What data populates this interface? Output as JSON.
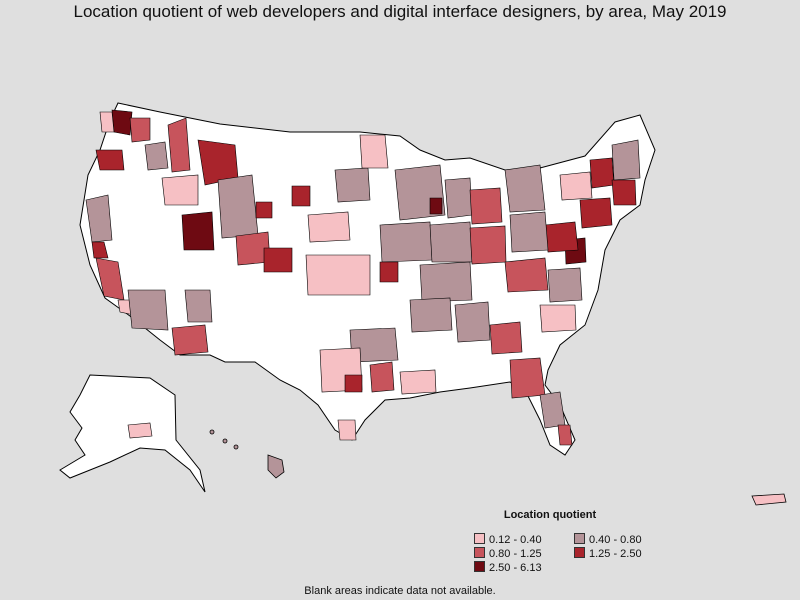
{
  "title": "Location quotient of web developers and digital interface designers, by area, May 2019",
  "legend": {
    "title": "Location quotient",
    "items": [
      {
        "label": "0.12 - 0.40",
        "color": "#f6c0c4"
      },
      {
        "label": "0.40 - 0.80",
        "color": "#b49499"
      },
      {
        "label": "0.80 - 1.25",
        "color": "#c7545c"
      },
      {
        "label": "1.25 - 2.50",
        "color": "#a9242c"
      },
      {
        "label": "2.50 - 6.13",
        "color": "#6e0a12"
      }
    ]
  },
  "footnote": "Blank areas indicate data not available.",
  "colors": {
    "background": "#dfdfdf",
    "no_data": "#ffffff",
    "border": "#000000"
  }
}
